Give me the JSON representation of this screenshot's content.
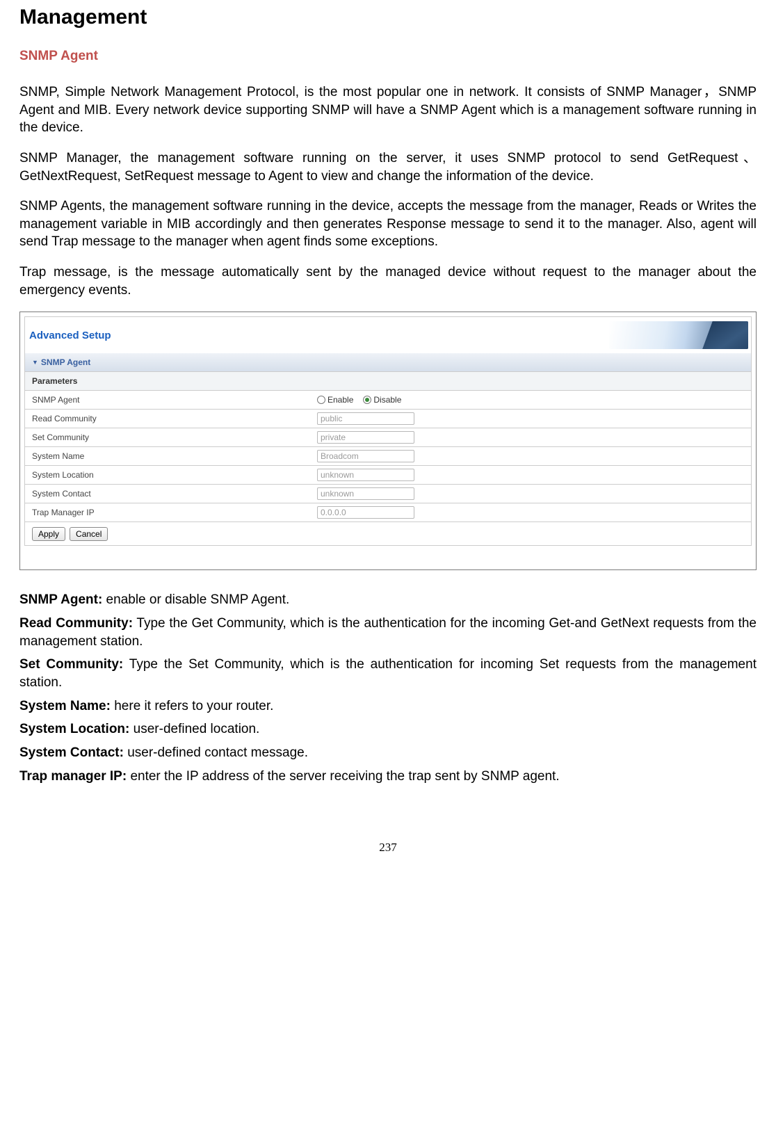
{
  "colors": {
    "heading_accent": "#c0504d",
    "panel_title": "#1a5fbf",
    "section_bg_top": "#eef2f7",
    "section_bg_bottom": "#d6dfeb",
    "subhead_bg": "#f2f4f6",
    "border": "#cccccc",
    "radio_selected": "#3a8a3a"
  },
  "page": {
    "title": "Management",
    "section_heading": "SNMP Agent",
    "section_heading_color": "#c0504d",
    "paragraphs": [
      "SNMP, Simple Network Management Protocol, is the most popular one in network. It consists of SNMP Manager，SNMP Agent and MIB. Every network device supporting SNMP will have a SNMP Agent which is a management software running in the device.",
      "SNMP Manager, the management software running on the server, it uses SNMP protocol to send GetRequest、GetNextRequest, SetRequest message to Agent to view and change the information of the device.",
      "SNMP Agents, the management software running in the device, accepts the message from the manager, Reads or Writes the management variable in MIB accordingly and then generates Response message to send it to the manager. Also, agent will send Trap message to the manager when agent finds some exceptions.",
      "Trap message, is the message automatically sent by the managed device without request to the manager about the emergency events."
    ],
    "page_number": "237"
  },
  "screenshot": {
    "header_title": "Advanced Setup",
    "section_label": "SNMP Agent",
    "subheader": "Parameters",
    "radio": {
      "enable_label": "Enable",
      "disable_label": "Disable",
      "selected": "disable"
    },
    "rows": [
      {
        "label": "SNMP Agent",
        "type": "radio"
      },
      {
        "label": "Read Community",
        "type": "text",
        "value": "public"
      },
      {
        "label": "Set Community",
        "type": "text",
        "value": "private"
      },
      {
        "label": "System Name",
        "type": "text",
        "value": "Broadcom"
      },
      {
        "label": "System Location",
        "type": "text",
        "value": "unknown"
      },
      {
        "label": "System Contact",
        "type": "text",
        "value": "unknown"
      },
      {
        "label": "Trap Manager IP",
        "type": "text",
        "value": "0.0.0.0"
      }
    ],
    "buttons": {
      "apply": "Apply",
      "cancel": "Cancel"
    }
  },
  "definitions": [
    {
      "term": "SNMP Agent:",
      "desc": " enable or disable SNMP Agent."
    },
    {
      "term": "Read Community:",
      "desc": " Type the Get Community, which is the authentication for the incoming Get-and GetNext requests from the management station."
    },
    {
      "term": "Set Community:",
      "desc": " Type the Set Community, which is the authentication for incoming Set requests from the management station."
    },
    {
      "term": "System Name:",
      "desc": " here it refers to your router."
    },
    {
      "term": "System Location:",
      "desc": " user-defined location."
    },
    {
      "term": "System Contact:",
      "desc": " user-defined contact message."
    },
    {
      "term": "Trap manager IP:",
      "desc": " enter the IP address of the server receiving the trap sent by SNMP agent."
    }
  ]
}
